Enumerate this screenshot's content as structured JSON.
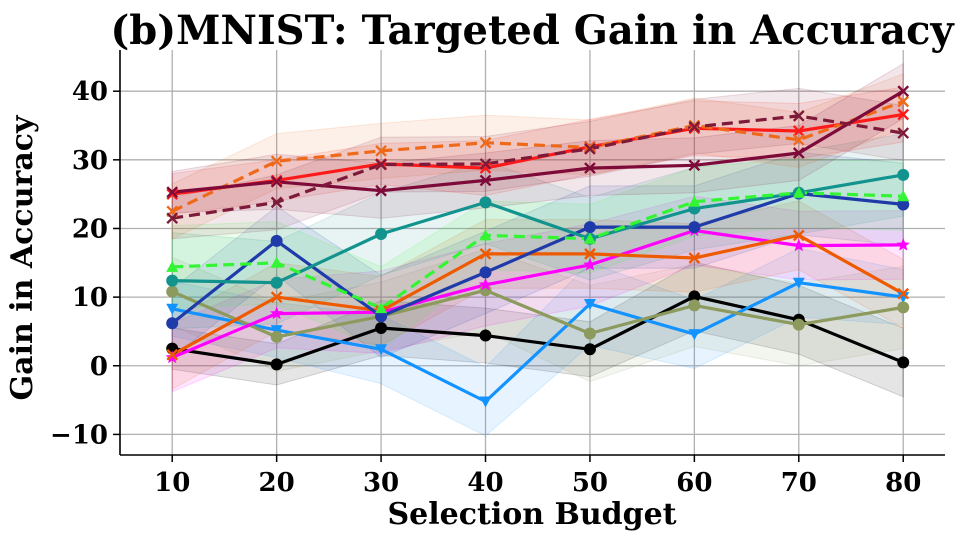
{
  "chart_data": {
    "type": "line",
    "title": "(b)MNIST: Targeted Gain in Accuracy",
    "xlabel": "Selection Budget",
    "ylabel": "Gain in Accuracy",
    "xlim": [
      5,
      84
    ],
    "ylim": [
      -13,
      46
    ],
    "xticks": [
      10,
      20,
      30,
      40,
      50,
      60,
      70,
      80
    ],
    "yticks": [
      -10,
      0,
      10,
      20,
      30,
      40
    ],
    "ytick_labels": [
      "−10",
      "0",
      "10",
      "20",
      "30",
      "40"
    ],
    "grid": true,
    "x": [
      10,
      20,
      30,
      40,
      50,
      60,
      70,
      80
    ],
    "series": [
      {
        "name": "black",
        "color": "#000000",
        "marker": "circle",
        "dashed": false,
        "values": [
          2.5,
          0.2,
          5.5,
          4.4,
          2.4,
          10.1,
          6.7,
          0.5
        ],
        "band": [
          3,
          3,
          4,
          4,
          4,
          5,
          5,
          5
        ]
      },
      {
        "name": "sky-blue",
        "color": "#1393ff",
        "marker": "triangle-down",
        "dashed": false,
        "values": [
          8.3,
          5.2,
          2.4,
          -5.2,
          9.0,
          4.6,
          12.1,
          10.0
        ],
        "band": [
          4,
          4,
          5,
          5,
          6,
          5,
          5,
          4
        ]
      },
      {
        "name": "olive",
        "color": "#8c9a5e",
        "marker": "circle",
        "dashed": false,
        "values": [
          10.8,
          4.2,
          7.2,
          11.0,
          4.7,
          8.8,
          6.0,
          8.5
        ],
        "band": [
          5,
          5,
          5,
          6,
          7,
          6,
          6,
          6
        ]
      },
      {
        "name": "magenta",
        "color": "#ff00ff",
        "marker": "star",
        "dashed": false,
        "values": [
          1.2,
          7.6,
          7.8,
          11.8,
          14.7,
          19.7,
          17.5,
          17.6
        ],
        "band": [
          5,
          5,
          6,
          6,
          6,
          5,
          5,
          5
        ]
      },
      {
        "name": "orange",
        "color": "#ee5a00",
        "marker": "x",
        "dashed": false,
        "values": [
          1.6,
          10.0,
          8.0,
          16.3,
          16.3,
          15.7,
          19.0,
          10.5
        ],
        "band": [
          5,
          5,
          5,
          5,
          5,
          5,
          5,
          5
        ]
      },
      {
        "name": "navy-blue",
        "color": "#1f3aa9",
        "marker": "circle",
        "dashed": false,
        "values": [
          6.2,
          18.2,
          7.2,
          13.6,
          20.2,
          20.2,
          25.1,
          23.5
        ],
        "band": [
          5,
          5,
          6,
          6,
          6,
          6,
          6,
          6
        ]
      },
      {
        "name": "teal",
        "color": "#13938e",
        "marker": "circle",
        "dashed": false,
        "values": [
          12.4,
          12.1,
          19.2,
          23.8,
          18.5,
          22.9,
          25.2,
          27.8
        ],
        "band": [
          7,
          6,
          6,
          6,
          6,
          6,
          6,
          6
        ]
      },
      {
        "name": "light-green",
        "color": "#33f533",
        "marker": "triangle-up",
        "dashed": true,
        "values": [
          14.4,
          15.0,
          8.4,
          19.0,
          18.5,
          23.9,
          25.2,
          24.7
        ],
        "band": [
          6,
          6,
          6,
          5,
          5,
          5,
          5,
          5
        ]
      },
      {
        "name": "red",
        "color": "#ff1a1a",
        "marker": "x",
        "dashed": false,
        "values": [
          25.0,
          27.0,
          29.4,
          28.8,
          31.9,
          34.6,
          34.2,
          36.6
        ],
        "band": [
          3,
          3,
          3,
          4,
          4,
          4,
          4,
          4
        ]
      },
      {
        "name": "orange-dashed",
        "color": "#ee6a1a",
        "marker": "x",
        "dashed": true,
        "values": [
          22.5,
          29.8,
          31.3,
          32.5,
          31.8,
          35.0,
          32.9,
          38.5
        ],
        "band": [
          4,
          4,
          4,
          4,
          4,
          4,
          4,
          4
        ]
      },
      {
        "name": "maroon",
        "color": "#7d0a38",
        "marker": "x",
        "dashed": false,
        "values": [
          25.3,
          26.8,
          25.5,
          27.0,
          28.8,
          29.2,
          31.0,
          40.0
        ],
        "band": [
          3,
          4,
          4,
          4,
          4,
          4,
          4,
          4
        ]
      },
      {
        "name": "maroon-dashed",
        "color": "#7d1a3a",
        "marker": "x",
        "dashed": true,
        "values": [
          21.5,
          23.8,
          29.3,
          29.4,
          31.6,
          34.8,
          36.4,
          33.9
        ],
        "band": [
          3,
          4,
          4,
          4,
          4,
          4,
          4,
          4
        ]
      }
    ]
  }
}
